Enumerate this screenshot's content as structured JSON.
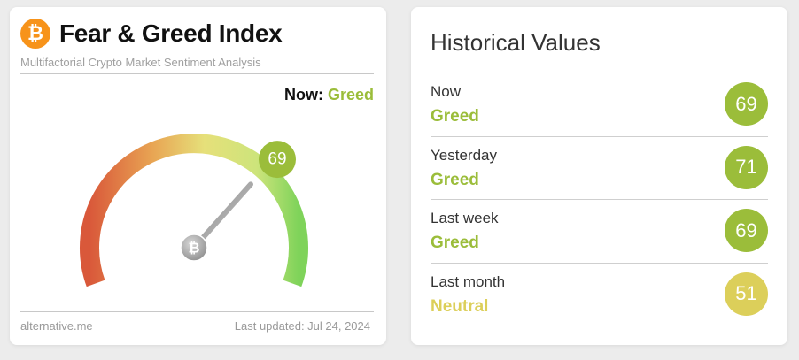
{
  "fear_greed": {
    "title": "Fear & Greed Index",
    "subtitle": "Multifactorial Crypto Market Sentiment Analysis",
    "now_label": "Now:",
    "now_value": "Greed",
    "value": "69",
    "gauge_value": 69,
    "gauge_range": [
      0,
      100
    ],
    "footer_source": "alternative.me",
    "footer_updated": "Last updated: Jul 24, 2024",
    "logo_icon": "bitcoin-icon",
    "colors": {
      "greed": "#9bbd3a",
      "fear": "#d9583a",
      "neutral": "#e2d257"
    }
  },
  "historical": {
    "title": "Historical Values",
    "rows": [
      {
        "label": "Now",
        "classification": "Greed",
        "value": "69",
        "color": "#9bbd3a"
      },
      {
        "label": "Yesterday",
        "classification": "Greed",
        "value": "71",
        "color": "#9bbd3a"
      },
      {
        "label": "Last week",
        "classification": "Greed",
        "value": "69",
        "color": "#9bbd3a"
      },
      {
        "label": "Last month",
        "classification": "Neutral",
        "value": "51",
        "color": "#dccf5a"
      }
    ]
  }
}
